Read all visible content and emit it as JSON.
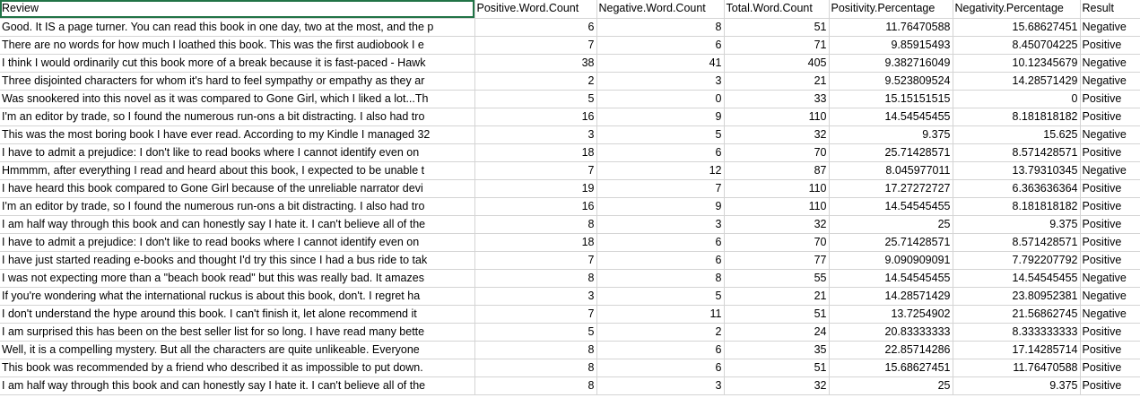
{
  "headers": [
    "Review",
    "Positive.Word.Count",
    "Negative.Word.Count",
    "Total.Word.Count",
    "Positivity.Percentage",
    "Negativity.Percentage",
    "Result"
  ],
  "rows": [
    [
      "Good. It IS a page turner. You can read this book in one day, two at the most, and the p",
      "6",
      "8",
      "51",
      "11.76470588",
      "15.68627451",
      "Negative"
    ],
    [
      "There are no words for how much I loathed this book.  This was the first audiobook I e",
      "7",
      "6",
      "71",
      "9.85915493",
      "8.450704225",
      "Positive"
    ],
    [
      "I think I would ordinarily cut this book more of a break because it is fast-paced - Hawk",
      "38",
      "41",
      "405",
      "9.382716049",
      "10.12345679",
      "Negative"
    ],
    [
      "Three disjointed characters for whom it's hard to feel sympathy or empathy as they ar",
      "2",
      "3",
      "21",
      "9.523809524",
      "14.28571429",
      "Negative"
    ],
    [
      "Was snookered into this novel as it was compared to Gone Girl, which I liked a lot...Th",
      "5",
      "0",
      "33",
      "15.15151515",
      "0",
      "Positive"
    ],
    [
      "I'm an editor by trade, so I found the numerous run-ons a bit distracting. I also had tro",
      "16",
      "9",
      "110",
      "14.54545455",
      "8.181818182",
      "Positive"
    ],
    [
      "This was the most boring book I have ever read. According to my Kindle I managed 32",
      "3",
      "5",
      "32",
      "9.375",
      "15.625",
      "Negative"
    ],
    [
      "I have to admit a prejudice: I don't like to read books where I cannot identify even on",
      "18",
      "6",
      "70",
      "25.71428571",
      "8.571428571",
      "Positive"
    ],
    [
      "Hmmmm, after everything I read and heard about this book, I expected to be unable t",
      "7",
      "12",
      "87",
      "8.045977011",
      "13.79310345",
      "Negative"
    ],
    [
      "I have heard this book compared to Gone Girl because of the unreliable narrator devi",
      "19",
      "7",
      "110",
      "17.27272727",
      "6.363636364",
      "Positive"
    ],
    [
      "I'm an editor by trade, so I found the numerous run-ons a bit distracting. I also had tro",
      "16",
      "9",
      "110",
      "14.54545455",
      "8.181818182",
      "Positive"
    ],
    [
      "I am half way through this book and can honestly say I hate it. I can't believe all of the",
      "8",
      "3",
      "32",
      "25",
      "9.375",
      "Positive"
    ],
    [
      "I have to admit a prejudice: I don't like to read books where I cannot identify even on",
      "18",
      "6",
      "70",
      "25.71428571",
      "8.571428571",
      "Positive"
    ],
    [
      "I have just started reading e-books and thought I'd try this since I had a bus ride to tak",
      "7",
      "6",
      "77",
      "9.090909091",
      "7.792207792",
      "Positive"
    ],
    [
      "I was not expecting more than a \"beach book read\" but this was really bad.  It amazes",
      "8",
      "8",
      "55",
      "14.54545455",
      "14.54545455",
      "Negative"
    ],
    [
      "If you're wondering what the international ruckus is about this book, don't. I regret ha",
      "3",
      "5",
      "21",
      "14.28571429",
      "23.80952381",
      "Negative"
    ],
    [
      "I don't understand the hype around this book. I can't finish it, let alone recommend it",
      "7",
      "11",
      "51",
      "13.7254902",
      "21.56862745",
      "Negative"
    ],
    [
      "I am surprised this has been on the best seller list for so long.  I have read many bette",
      "5",
      "2",
      "24",
      "20.83333333",
      "8.333333333",
      "Positive"
    ],
    [
      "Well, it is a compelling mystery. But all the characters are quite unlikeable. Everyone",
      "8",
      "6",
      "35",
      "22.85714286",
      "17.14285714",
      "Positive"
    ],
    [
      "This book was recommended by a friend who described it as impossible to put down.",
      "8",
      "6",
      "51",
      "15.68627451",
      "11.76470588",
      "Positive"
    ],
    [
      "I am half way through this book and can honestly say I hate it. I can't believe all of the",
      "8",
      "3",
      "32",
      "25",
      "9.375",
      "Positive"
    ]
  ]
}
